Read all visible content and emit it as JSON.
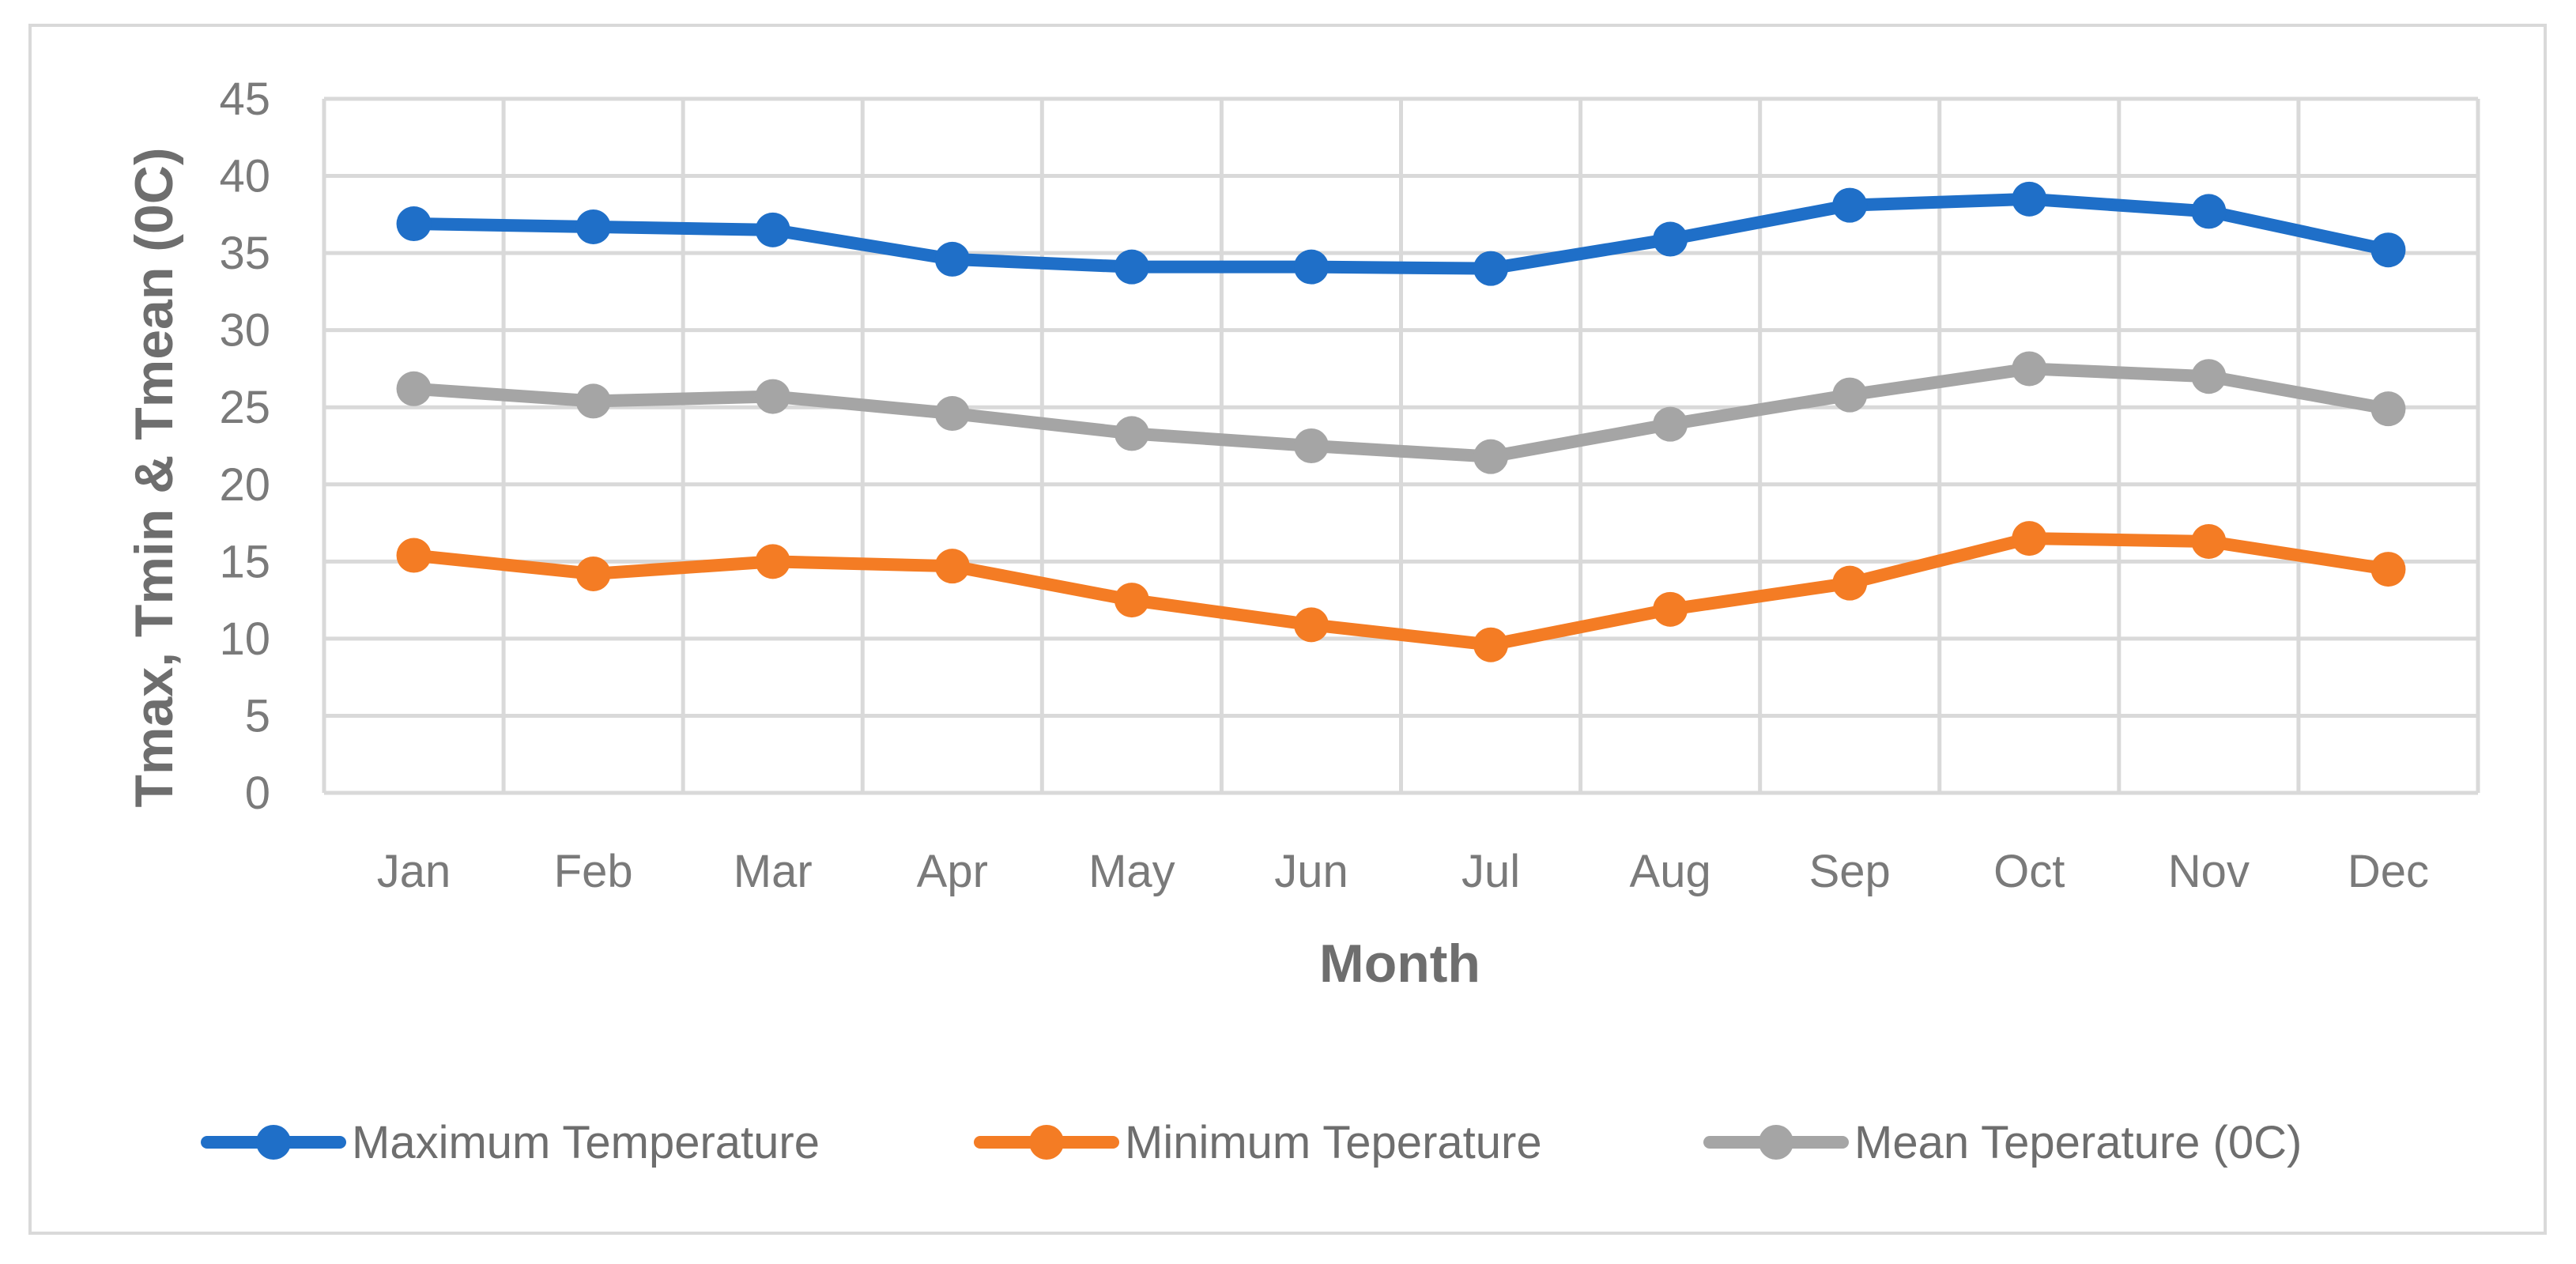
{
  "chart_data": {
    "type": "line",
    "title": "",
    "xlabel": "Month",
    "ylabel": "Tmax, Tmin & Tmean (0C)",
    "categories": [
      "Jan",
      "Feb",
      "Mar",
      "Apr",
      "May",
      "Jun",
      "Jul",
      "Aug",
      "Sep",
      "Oct",
      "Nov",
      "Dec"
    ],
    "ylim": [
      0,
      45
    ],
    "yticks": [
      0,
      5,
      10,
      15,
      20,
      25,
      30,
      35,
      40,
      45
    ],
    "yticks_text": [
      "0",
      "5",
      "10",
      "15",
      "20",
      "25",
      "30",
      "35",
      "40",
      "45"
    ],
    "grid": true,
    "legend_position": "bottom",
    "series": [
      {
        "name": "Maximum Temperature",
        "color": "#1f6fc8",
        "values": [
          36.9,
          36.7,
          36.5,
          34.6,
          34.1,
          34.1,
          34.0,
          35.9,
          38.1,
          38.5,
          37.7,
          35.2
        ]
      },
      {
        "name": "Minimum Teperature",
        "color": "#f47c24",
        "values": [
          15.4,
          14.2,
          15.0,
          14.7,
          12.5,
          10.9,
          9.6,
          11.9,
          13.6,
          16.5,
          16.3,
          14.5
        ]
      },
      {
        "name": "Mean Teperature (0C)",
        "color": "#a5a5a5",
        "values": [
          26.2,
          25.4,
          25.7,
          24.6,
          23.3,
          22.5,
          21.8,
          23.9,
          25.8,
          27.5,
          27.0,
          24.9
        ]
      }
    ]
  }
}
